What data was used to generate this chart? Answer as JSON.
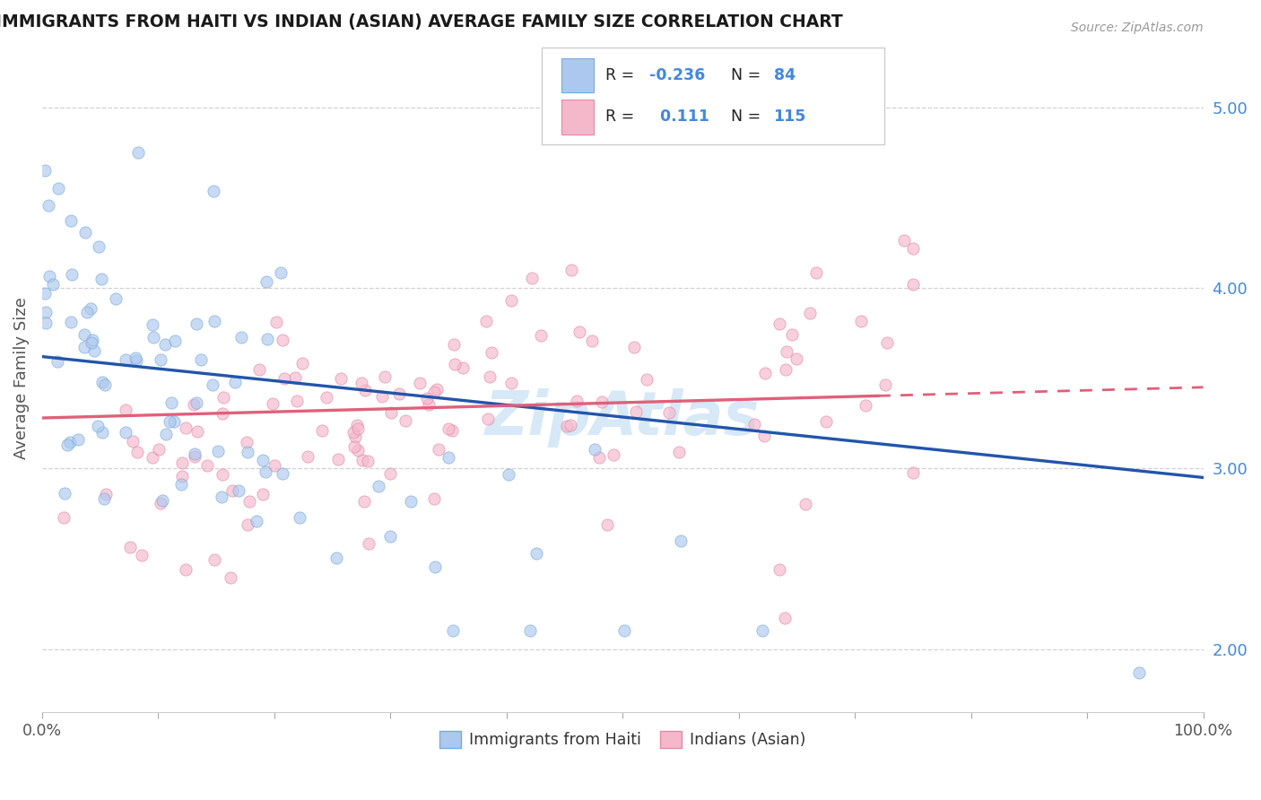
{
  "title": "IMMIGRANTS FROM HAITI VS INDIAN (ASIAN) AVERAGE FAMILY SIZE CORRELATION CHART",
  "source": "Source: ZipAtlas.com",
  "ylabel": "Average Family Size",
  "right_yticks": [
    2.0,
    3.0,
    4.0,
    5.0
  ],
  "xlim": [
    0.0,
    1.0
  ],
  "ylim": [
    1.65,
    5.35
  ],
  "haiti_color": "#adc8ef",
  "haiti_edge_color": "#7aaad8",
  "indian_color": "#f5b8cb",
  "indian_edge_color": "#e08aaa",
  "haiti_line_color": "#2255aa",
  "indian_line_color": "#e0607a",
  "background_color": "#ffffff",
  "grid_color": "#cccccc",
  "watermark_color": "#d0e4f5",
  "title_color": "#1a1a1a",
  "label_color": "#555555",
  "right_tick_color": "#4488dd",
  "haiti_R": -0.236,
  "haiti_N": 84,
  "indian_R": 0.111,
  "indian_N": 115,
  "haiti_line_start_y": 3.62,
  "haiti_line_end_y": 2.95,
  "indian_line_start_y": 3.28,
  "indian_line_end_y": 3.45,
  "indian_solid_end_x": 0.72,
  "xtick_count": 10,
  "marker_size": 90,
  "marker_alpha": 0.65,
  "marker_linewidth": 0.7
}
